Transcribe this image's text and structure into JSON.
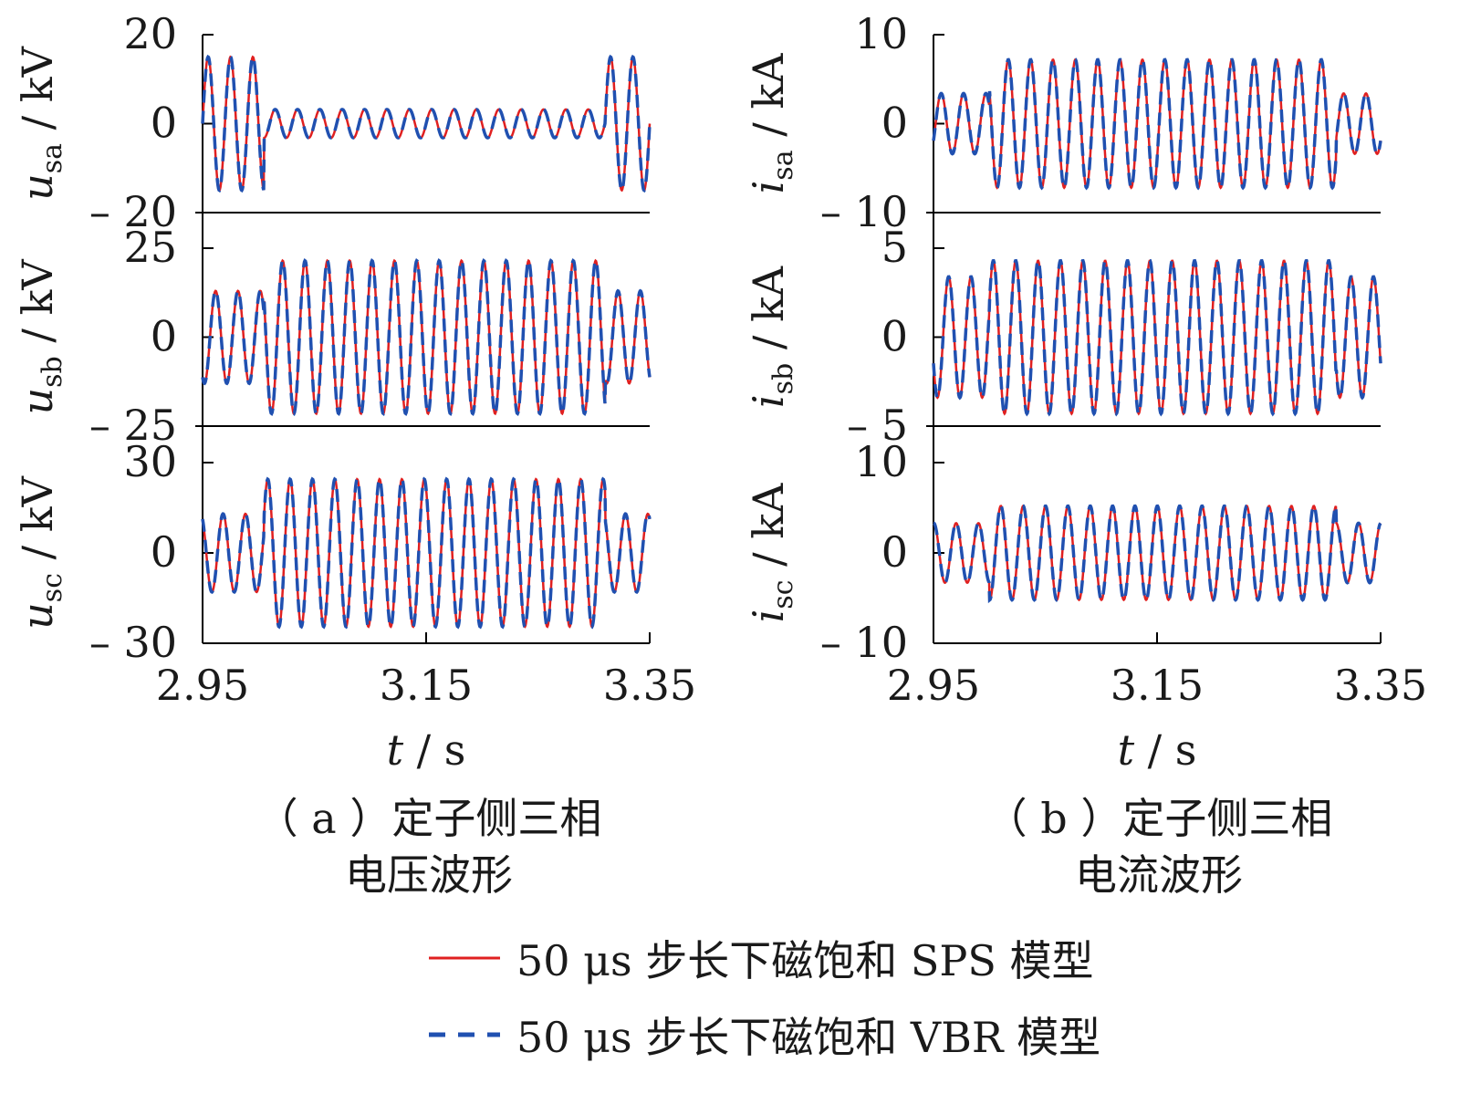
{
  "chart_data": [
    {
      "type": "line",
      "panel": "a",
      "caption_line1": "（ a ）定子侧三相",
      "caption_line2": "电压波形",
      "xlabel_var": "t",
      "xlabel_unit": " / s",
      "xticks": [
        "2.95",
        "3.15",
        "3.35"
      ],
      "xlim": [
        2.95,
        3.35
      ],
      "subplots": [
        {
          "ylabel_main": "u",
          "ylabel_sub": "sa",
          "ylabel_unit": " / kV",
          "ylim": [
            -20,
            20
          ],
          "yticks": [
            "20",
            "0",
            "– 20"
          ],
          "segments": [
            [
              2.95,
              3.005,
              15
            ],
            [
              3.005,
              3.31,
              3.2
            ],
            [
              3.31,
              3.35,
              15
            ]
          ]
        },
        {
          "ylabel_main": "u",
          "ylabel_sub": "sb",
          "ylabel_unit": " / kV",
          "ylim": [
            -25,
            25
          ],
          "yticks": [
            "25",
            "0",
            "– 25"
          ],
          "segments": [
            [
              2.95,
              3.005,
              13
            ],
            [
              3.005,
              3.31,
              21.5
            ],
            [
              3.31,
              3.35,
              13
            ]
          ]
        },
        {
          "ylabel_main": "u",
          "ylabel_sub": "sc",
          "ylabel_unit": " / kV",
          "ylim": [
            -30,
            30
          ],
          "yticks": [
            "30",
            "0",
            "– 30"
          ],
          "segments": [
            [
              2.95,
              3.005,
              13
            ],
            [
              3.005,
              3.31,
              24.5
            ],
            [
              3.31,
              3.35,
              13
            ]
          ]
        }
      ]
    },
    {
      "type": "line",
      "panel": "b",
      "caption_line1": "（ b ）定子侧三相",
      "caption_line2": "电流波形",
      "xlabel_var": "t",
      "xlabel_unit": " / s",
      "xticks": [
        "2.95",
        "3.15",
        "3.35"
      ],
      "xlim": [
        2.95,
        3.35
      ],
      "subplots": [
        {
          "ylabel_main": "i",
          "ylabel_sub": "sa",
          "ylabel_unit": " / kA",
          "ylim": [
            -10,
            10
          ],
          "yticks": [
            "10",
            "0",
            "– 10"
          ],
          "segments": [
            [
              2.95,
              3.0,
              3.4
            ],
            [
              3.0,
              3.31,
              7.2
            ],
            [
              3.31,
              3.35,
              3.4
            ]
          ]
        },
        {
          "ylabel_main": "i",
          "ylabel_sub": "sb",
          "ylabel_unit": " / kA",
          "ylim": [
            -5,
            5
          ],
          "yticks": [
            "5",
            "0",
            "– 5"
          ],
          "segments": [
            [
              2.95,
              3.0,
              3.4
            ],
            [
              3.0,
              3.31,
              4.3
            ],
            [
              3.31,
              3.35,
              3.4
            ]
          ]
        },
        {
          "ylabel_main": "i",
          "ylabel_sub": "sc",
          "ylabel_unit": " / kA",
          "ylim": [
            -10,
            10
          ],
          "yticks": [
            "10",
            "0",
            "– 10"
          ],
          "segments": [
            [
              2.95,
              3.0,
              3.3
            ],
            [
              3.0,
              3.31,
              5.2
            ],
            [
              3.31,
              3.35,
              3.3
            ]
          ]
        }
      ]
    }
  ],
  "legend": {
    "items": [
      {
        "label": "50 μs 步长下磁饱和 SPS 模型",
        "color": "#e02020",
        "style": "solid"
      },
      {
        "label": "50 μs 步长下磁饱和 VBR 模型",
        "color": "#2050b0",
        "style": "dashed"
      }
    ]
  }
}
